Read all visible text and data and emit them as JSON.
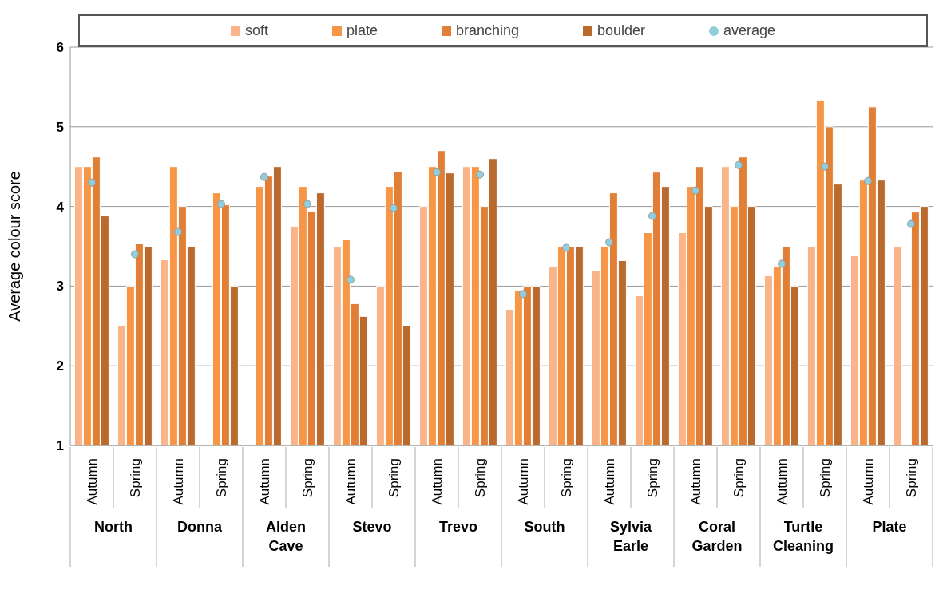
{
  "chart_data": {
    "type": "bar",
    "ylabel": "Average colour score",
    "categories": [
      "Autumn",
      "Spring",
      "Autumn",
      "Spring",
      "Autumn",
      "Spring",
      "Autumn",
      "Spring",
      "Autumn",
      "Spring",
      "Autumn",
      "Spring",
      "Autumn",
      "Spring",
      "Autumn",
      "Spring",
      "Autumn",
      "Spring",
      "Autumn",
      "Spring"
    ],
    "annotations": [
      "North",
      "Donna",
      "Alden Cave",
      "Stevo",
      "Trevo",
      "South",
      "Sylvia Earle",
      "Coral Garden",
      "Turtle Cleaning",
      "Plate"
    ],
    "series": [
      {
        "name": "soft",
        "color": "#f9b48a",
        "values": [
          4.5,
          2.5,
          3.33,
          null,
          null,
          3.75,
          3.5,
          3.0,
          4.0,
          4.5,
          2.7,
          3.25,
          3.2,
          2.88,
          3.67,
          4.5,
          3.13,
          3.5,
          3.38,
          3.5
        ]
      },
      {
        "name": "plate",
        "color": "#f79646",
        "values": [
          4.5,
          3.0,
          4.5,
          4.17,
          4.25,
          4.25,
          3.58,
          4.25,
          4.5,
          4.5,
          2.95,
          3.5,
          3.5,
          3.67,
          4.25,
          4.0,
          3.25,
          5.33,
          4.33,
          null
        ]
      },
      {
        "name": "branching",
        "color": "#e07f35",
        "values": [
          4.62,
          3.53,
          4.0,
          4.02,
          4.38,
          3.94,
          2.78,
          4.44,
          4.7,
          4.0,
          3.0,
          3.5,
          4.17,
          4.43,
          4.5,
          4.62,
          3.5,
          5.0,
          5.25,
          3.93
        ]
      },
      {
        "name": "boulder",
        "color": "#b96a2c",
        "values": [
          3.88,
          3.5,
          3.5,
          3.0,
          4.5,
          4.17,
          2.62,
          2.5,
          4.42,
          4.6,
          3.0,
          3.5,
          3.32,
          4.25,
          4.0,
          4.0,
          3.0,
          4.28,
          4.33,
          4.0
        ]
      },
      {
        "name": "average",
        "type": "scatter",
        "color": "#92cddc",
        "values": [
          4.3,
          3.4,
          3.68,
          4.03,
          4.37,
          4.03,
          3.08,
          3.98,
          4.43,
          4.4,
          2.9,
          3.48,
          3.55,
          3.88,
          4.2,
          4.52,
          3.28,
          4.5,
          4.32,
          3.78
        ]
      }
    ],
    "ylim": [
      1,
      6
    ],
    "yticks": [
      1,
      2,
      3,
      4,
      5,
      6
    ],
    "grid": "y",
    "legend": "top",
    "marker": "circle"
  }
}
